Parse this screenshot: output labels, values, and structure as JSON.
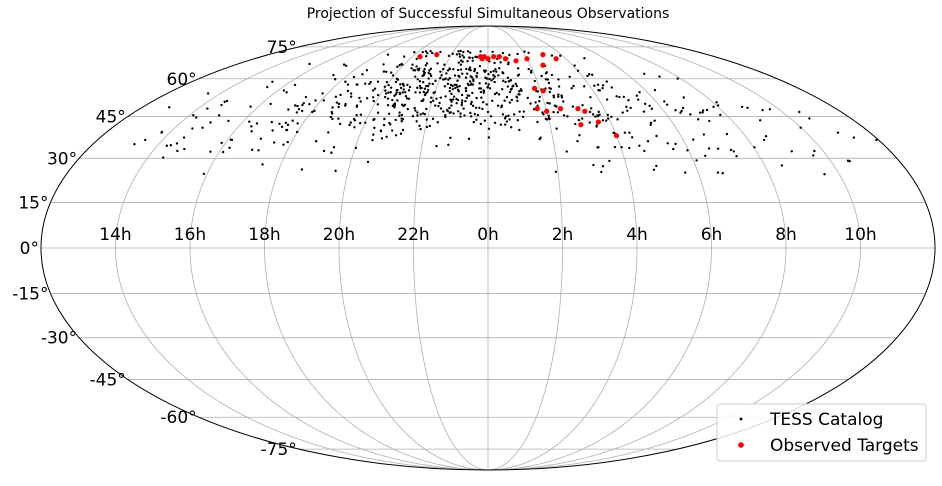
{
  "chart_data": {
    "type": "scatter",
    "projection": "mollweide",
    "title": "Projection of Successful Simultaneous Observations",
    "grid": true,
    "legend_placement": "lower right",
    "x_tick_labels": [
      "14h",
      "16h",
      "18h",
      "20h",
      "22h",
      "0h",
      "2h",
      "4h",
      "6h",
      "8h",
      "10h"
    ],
    "x_tick_ra_hours": [
      14,
      16,
      18,
      20,
      22,
      0,
      2,
      4,
      6,
      8,
      10
    ],
    "y_tick_labels": [
      "-75°",
      "-60°",
      "-45°",
      "-30°",
      "-15°",
      "0°",
      "15°",
      "30°",
      "45°",
      "60°",
      "75°"
    ],
    "y_tick_dec": [
      -75,
      -60,
      -45,
      -30,
      -15,
      0,
      15,
      30,
      45,
      60,
      75
    ],
    "colors": {
      "tess": "#000000",
      "observed": "#ff0000",
      "grid": "#b0b0b0",
      "outline": "#000000"
    },
    "series": [
      {
        "name": "TESS Catalog",
        "color": "#000000",
        "marker_size": "small",
        "clusters": [
          {
            "ra_center_h": 21.0,
            "dec_center": 55,
            "ra_spread_h": 1.6,
            "dec_spread": 10,
            "count": 260
          },
          {
            "ra_center_h": 23.2,
            "dec_center": 55,
            "ra_spread_h": 1.4,
            "dec_spread": 9,
            "count": 150
          },
          {
            "ra_center_h": 0.8,
            "dec_center": 55,
            "ra_spread_h": 1.4,
            "dec_spread": 8,
            "count": 90
          },
          {
            "ra_center_h": 3.0,
            "dec_center": 45,
            "ra_spread_h": 1.8,
            "dec_spread": 10,
            "count": 90
          },
          {
            "ra_center_h": 6.0,
            "dec_center": 45,
            "ra_spread_h": 1.6,
            "dec_spread": 10,
            "count": 60
          },
          {
            "ra_center_h": 17.5,
            "dec_center": 45,
            "ra_spread_h": 1.6,
            "dec_spread": 10,
            "count": 60
          },
          {
            "ra_center_h": 9.0,
            "dec_center": 40,
            "ra_spread_h": 1.6,
            "dec_spread": 8,
            "count": 25
          },
          {
            "ra_center_h": 14.5,
            "dec_center": 40,
            "ra_spread_h": 1.2,
            "dec_spread": 8,
            "count": 25
          }
        ]
      },
      {
        "name": "Observed Targets",
        "color": "#ff0000",
        "marker_size": "large",
        "points": [
          {
            "ra_h": 20.4,
            "dec": 70
          },
          {
            "ra_h": 21.2,
            "dec": 71
          },
          {
            "ra_h": 23.6,
            "dec": 70
          },
          {
            "ra_h": 23.7,
            "dec": 69
          },
          {
            "ra_h": 23.8,
            "dec": 70
          },
          {
            "ra_h": 0.0,
            "dec": 69
          },
          {
            "ra_h": 0.3,
            "dec": 70
          },
          {
            "ra_h": 0.6,
            "dec": 70
          },
          {
            "ra_h": 0.9,
            "dec": 69
          },
          {
            "ra_h": 1.4,
            "dec": 68
          },
          {
            "ra_h": 2.0,
            "dec": 69
          },
          {
            "ra_h": 3.0,
            "dec": 71
          },
          {
            "ra_h": 2.6,
            "dec": 66
          },
          {
            "ra_h": 3.5,
            "dec": 69
          },
          {
            "ra_h": 1.8,
            "dec": 56
          },
          {
            "ra_h": 2.1,
            "dec": 55
          },
          {
            "ra_h": 1.7,
            "dec": 48
          },
          {
            "ra_h": 2.0,
            "dec": 47
          },
          {
            "ra_h": 2.5,
            "dec": 48
          },
          {
            "ra_h": 3.1,
            "dec": 48
          },
          {
            "ra_h": 3.3,
            "dec": 47
          },
          {
            "ra_h": 3.6,
            "dec": 43
          },
          {
            "ra_h": 3.0,
            "dec": 42
          },
          {
            "ra_h": 4.0,
            "dec": 38
          }
        ]
      }
    ]
  }
}
